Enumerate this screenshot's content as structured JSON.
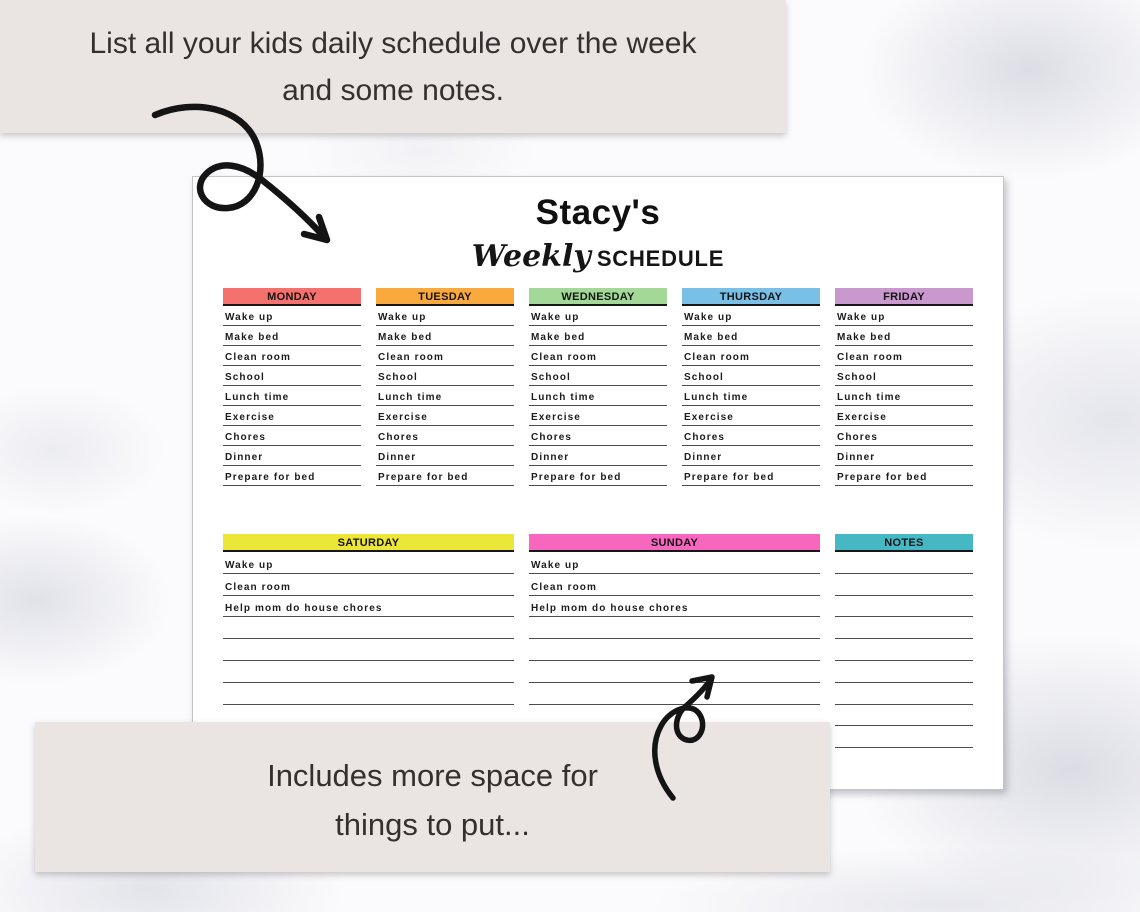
{
  "callouts": {
    "top": {
      "line1": "List all your kids daily schedule over the week",
      "line2": "and some notes."
    },
    "bottom": {
      "line1": "Includes more space for",
      "line2": "things to put..."
    },
    "background_color": "#eae4e3"
  },
  "page": {
    "title": "Stacy's",
    "subtitle_script": "Weekly",
    "subtitle_caps": "SCHEDULE"
  },
  "weekday_columns": [
    {
      "day": "MONDAY",
      "color": "#f4716d",
      "items": [
        "Wake up",
        "Make bed",
        "Clean room",
        "School",
        "Lunch time",
        "Exercise",
        "Chores",
        "Dinner",
        "Prepare for bed"
      ],
      "total_rows": 9
    },
    {
      "day": "TUESDAY",
      "color": "#f9a93e",
      "items": [
        "Wake up",
        "Make bed",
        "Clean room",
        "School",
        "Lunch time",
        "Exercise",
        "Chores",
        "Dinner",
        "Prepare for bed"
      ],
      "total_rows": 9
    },
    {
      "day": "WEDNESDAY",
      "color": "#a3d898",
      "items": [
        "Wake up",
        "Make bed",
        "Clean room",
        "School",
        "Lunch time",
        "Exercise",
        "Chores",
        "Dinner",
        "Prepare for bed"
      ],
      "total_rows": 9
    },
    {
      "day": "THURSDAY",
      "color": "#79bfe6",
      "items": [
        "Wake up",
        "Make bed",
        "Clean room",
        "School",
        "Lunch time",
        "Exercise",
        "Chores",
        "Dinner",
        "Prepare for bed"
      ],
      "total_rows": 9
    },
    {
      "day": "FRIDAY",
      "color": "#c998cd",
      "items": [
        "Wake up",
        "Make bed",
        "Clean room",
        "School",
        "Lunch time",
        "Exercise",
        "Chores",
        "Dinner",
        "Prepare for bed"
      ],
      "total_rows": 9
    }
  ],
  "weekend_columns": [
    {
      "day": "SATURDAY",
      "color": "#ebe637",
      "span": 2,
      "items": [
        "Wake up",
        "Clean room",
        "Help mom do house chores"
      ],
      "total_rows": 9
    },
    {
      "day": "SUNDAY",
      "color": "#f767be",
      "span": 2,
      "items": [
        "Wake up",
        "Clean room",
        "Help mom do house chores"
      ],
      "total_rows": 9
    },
    {
      "day": "NOTES",
      "color": "#45b8c4",
      "span": 1,
      "items": [],
      "total_rows": 9
    }
  ]
}
